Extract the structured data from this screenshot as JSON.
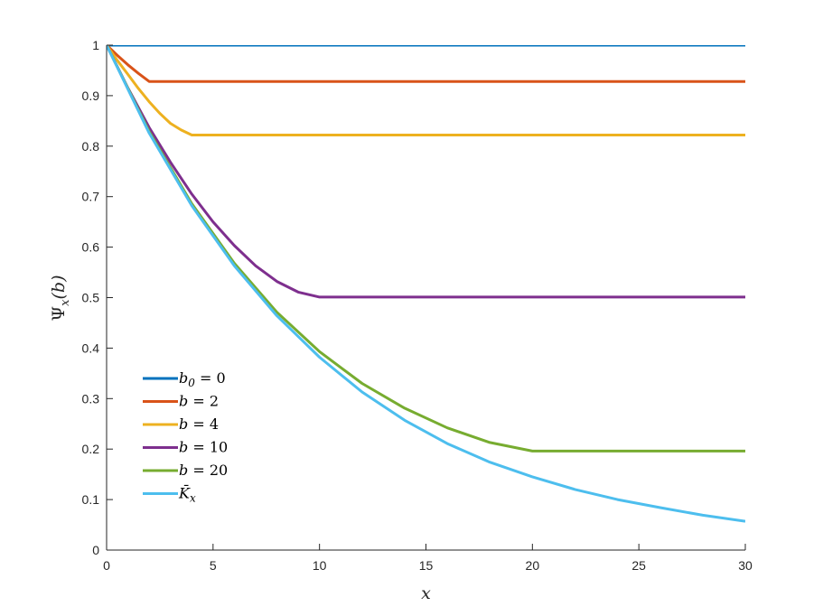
{
  "chart_data": {
    "type": "line",
    "title": "",
    "xlabel": "x",
    "ylabel": "Ψx(b)",
    "ylabel_main": "Ψ",
    "ylabel_sub": "x",
    "ylabel_arg": "(b)",
    "xlim": [
      0,
      30
    ],
    "ylim": [
      0,
      1
    ],
    "xticks": [
      0,
      5,
      10,
      15,
      20,
      25,
      30
    ],
    "yticks": [
      0,
      0.1,
      0.2,
      0.3,
      0.4,
      0.5,
      0.6,
      0.7,
      0.8,
      0.9,
      1
    ],
    "xtick_labels": [
      "0",
      "5",
      "10",
      "15",
      "20",
      "25",
      "30"
    ],
    "ytick_labels": [
      "0",
      "0.1",
      "0.2",
      "0.3",
      "0.4",
      "0.5",
      "0.6",
      "0.7",
      "0.8",
      "0.9",
      "1"
    ],
    "grid": false,
    "legend_position": "bottom-left",
    "series": [
      {
        "name": "b0 = 0",
        "label_main": "b",
        "label_sub": "0",
        "label_rest": " = 0",
        "color": "#0072BD",
        "x": [
          0,
          30
        ],
        "y": [
          1.0,
          1.0
        ]
      },
      {
        "name": "b = 2",
        "label_main": "b",
        "label_sub": "",
        "label_rest": " = 2",
        "color": "#D95319",
        "x": [
          0,
          0.5,
          1,
          1.5,
          2,
          30
        ],
        "y": [
          1.0,
          0.98,
          0.961,
          0.944,
          0.928,
          0.928
        ]
      },
      {
        "name": "b = 4",
        "label_main": "b",
        "label_sub": "",
        "label_rest": " = 4",
        "color": "#EDB120",
        "x": [
          0,
          0.5,
          1,
          1.5,
          2,
          2.5,
          3,
          3.5,
          4,
          30
        ],
        "y": [
          1.0,
          0.97,
          0.942,
          0.914,
          0.888,
          0.865,
          0.845,
          0.832,
          0.822,
          0.822
        ]
      },
      {
        "name": "b = 10",
        "label_main": "b",
        "label_sub": "",
        "label_rest": " = 10",
        "color": "#7E2F8E",
        "x": [
          0,
          1,
          2,
          3,
          4,
          5,
          6,
          7,
          8,
          9,
          10,
          30
        ],
        "y": [
          1.0,
          0.915,
          0.837,
          0.768,
          0.705,
          0.65,
          0.603,
          0.563,
          0.532,
          0.511,
          0.501,
          0.501
        ]
      },
      {
        "name": "b = 20",
        "label_main": "b",
        "label_sub": "",
        "label_rest": " = 20",
        "color": "#77AC30",
        "x": [
          0,
          2,
          4,
          6,
          8,
          10,
          12,
          14,
          16,
          18,
          20,
          30
        ],
        "y": [
          1.0,
          0.829,
          0.686,
          0.568,
          0.471,
          0.393,
          0.33,
          0.281,
          0.242,
          0.213,
          0.196,
          0.196
        ]
      },
      {
        "name": "K̄x",
        "label_main": "K̄",
        "label_sub": "x",
        "label_rest": "",
        "color": "#4DBEEE",
        "x": [
          0,
          2,
          4,
          6,
          8,
          10,
          12,
          14,
          16,
          18,
          20,
          22,
          24,
          26,
          28,
          30
        ],
        "y": [
          1.0,
          0.826,
          0.682,
          0.563,
          0.464,
          0.382,
          0.313,
          0.257,
          0.211,
          0.174,
          0.145,
          0.12,
          0.1,
          0.084,
          0.069,
          0.057
        ]
      }
    ]
  }
}
